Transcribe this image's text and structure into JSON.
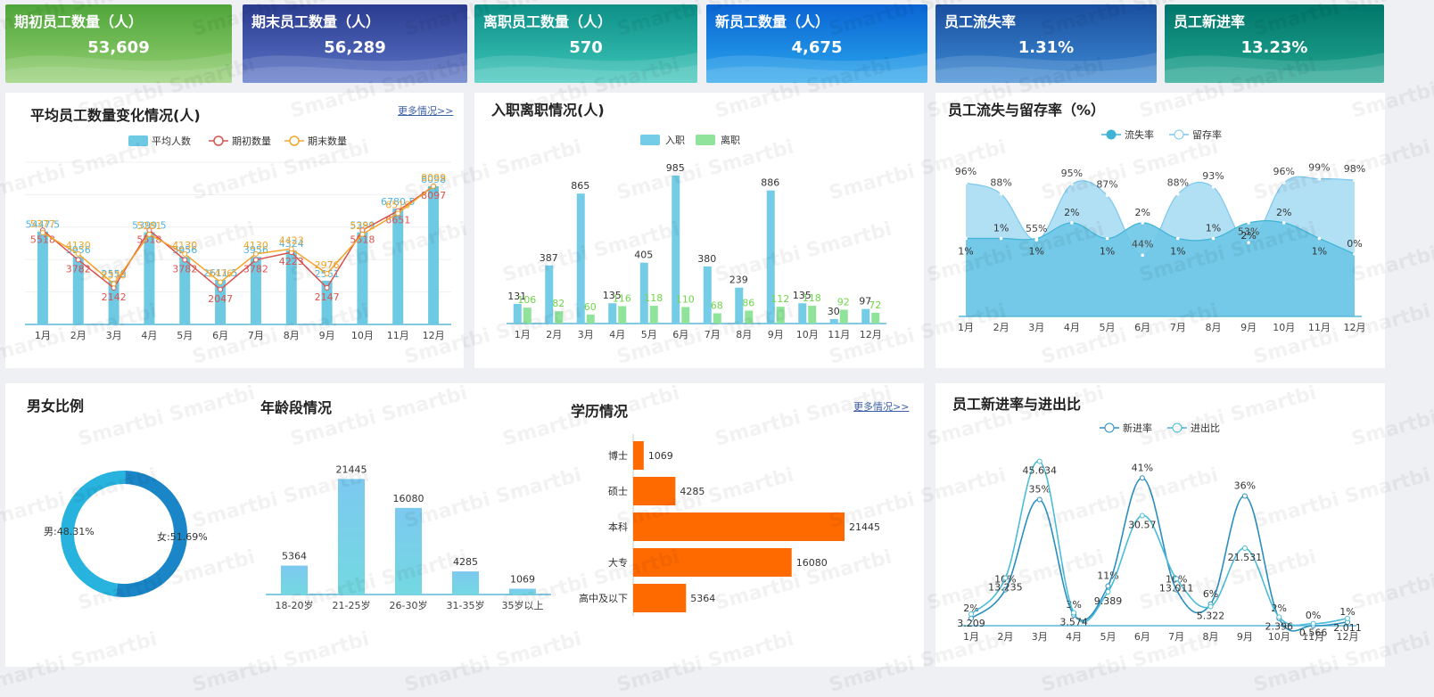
{
  "kpis": [
    {
      "title": "期初员工数量（人）",
      "value": "53,609",
      "c1": "#4fa63a",
      "c2": "#95cf73"
    },
    {
      "title": "期末员工数量（人）",
      "value": "56,289",
      "c1": "#2b3c8f",
      "c2": "#5a73c6"
    },
    {
      "title": "离职员工数量（人）",
      "value": "570",
      "c1": "#0d8f86",
      "c2": "#3fc6bb"
    },
    {
      "title": "新员工数量（人）",
      "value": "4,675",
      "c1": "#0a64d4",
      "c2": "#2aa7ec"
    },
    {
      "title": "员工流失率",
      "value": "1.31%",
      "c1": "#1a4fa0",
      "c2": "#3d8ad3"
    },
    {
      "title": "员工新进率",
      "value": "13.23%",
      "c1": "#00766a",
      "c2": "#23a691"
    }
  ],
  "more_label": "更多情况>>",
  "watermark": "Smartbi",
  "chart_data": [
    {
      "id": "avg",
      "type": "bar+line",
      "title": "平均员工数量变化情况(人)",
      "categories": [
        "1月",
        "2月",
        "3月",
        "4月",
        "5月",
        "6月",
        "7月",
        "8月",
        "9月",
        "10月",
        "11月",
        "12月"
      ],
      "series": [
        {
          "name": "平均人数",
          "kind": "bar",
          "color": "#6ec9e3",
          "values": [
            5447.5,
            3956,
            2559,
            5399.5,
            3956,
            2611.5,
            3956,
            4324,
            2561,
            5399,
            6780.5,
            8098
          ]
        },
        {
          "name": "期初数量",
          "kind": "line",
          "color": "#d9534f",
          "values": [
            5518,
            3782,
            2142,
            5518,
            3782,
            2047,
            3782,
            4223,
            2147,
            5518,
            6651,
            8097
          ]
        },
        {
          "name": "期末数量",
          "kind": "line",
          "color": "#f4a62a",
          "values": [
            5377,
            4130,
            2376,
            5281,
            4130,
            2476,
            4130,
            4423,
            2976,
            5281,
            6510,
            8099
          ]
        }
      ],
      "ylim": [
        0,
        9500
      ]
    },
    {
      "id": "inout",
      "type": "bar",
      "title": "入职离职情况(人)",
      "categories": [
        "1月",
        "2月",
        "3月",
        "4月",
        "5月",
        "6月",
        "7月",
        "8月",
        "9月",
        "10月",
        "11月",
        "12月"
      ],
      "series": [
        {
          "name": "入职",
          "color": "#74cce6",
          "values": [
            131,
            387,
            865,
            135,
            405,
            985,
            380,
            239,
            886,
            135,
            30,
            97
          ]
        },
        {
          "name": "离职",
          "color": "#8fe39a",
          "values": [
            106,
            82,
            60,
            116,
            118,
            110,
            68,
            86,
            112,
            118,
            92,
            72
          ]
        }
      ],
      "ylim": [
        0,
        1050
      ]
    },
    {
      "id": "retention",
      "type": "area",
      "title": "员工流失与留存率（%）",
      "categories": [
        "1月",
        "2月",
        "3月",
        "4月",
        "5月",
        "6月",
        "7月",
        "8月",
        "9月",
        "10月",
        "11月",
        "12月"
      ],
      "series": [
        {
          "name": "流失率",
          "color": "#3fb4d6",
          "values": [
            1,
            1,
            1,
            2,
            1,
            2,
            1,
            1,
            2,
            2,
            1,
            0
          ],
          "labels": [
            "1%",
            "1%",
            "1%",
            "2%",
            "1%",
            "2%",
            "1%",
            "1%",
            "2%",
            "2%",
            "1%",
            "0%"
          ]
        },
        {
          "name": "留存率",
          "color": "#7cc8ee",
          "values": [
            96,
            88,
            55,
            95,
            87,
            44,
            88,
            93,
            53,
            96,
            99,
            98
          ],
          "labels": [
            "96%",
            "88%",
            "55%",
            "95%",
            "87%",
            "44%",
            "88%",
            "93%",
            "53%",
            "96%",
            "99%",
            "98%"
          ]
        }
      ]
    },
    {
      "id": "gender",
      "type": "pie",
      "title": "男女比例",
      "slices": [
        {
          "name": "女",
          "value": 51.69,
          "label": "女:51.69%",
          "color": "#1a86c8"
        },
        {
          "name": "男",
          "value": 48.31,
          "label": "男:48.31%",
          "color": "#27b3de"
        }
      ]
    },
    {
      "id": "age",
      "type": "bar",
      "title": "年龄段情况",
      "categories": [
        "18-20岁",
        "21-25岁",
        "26-30岁",
        "31-35岁",
        "35岁以上"
      ],
      "values": [
        5364,
        21445,
        16080,
        4285,
        1069
      ],
      "ylim": [
        0,
        23000
      ]
    },
    {
      "id": "edu",
      "type": "bar",
      "orientation": "horizontal",
      "title": "学历情况",
      "categories": [
        "博士",
        "硕士",
        "本科",
        "大专",
        "高中及以下"
      ],
      "values": [
        1069,
        4285,
        21445,
        16080,
        5364
      ],
      "color": "#ff6a00",
      "xlim": [
        0,
        21445
      ]
    },
    {
      "id": "newrate",
      "type": "line",
      "title": "员工新进率与进出比",
      "categories": [
        "1月",
        "2月",
        "3月",
        "4月",
        "5月",
        "6月",
        "7月",
        "8月",
        "9月",
        "10月",
        "11月",
        "12月"
      ],
      "series": [
        {
          "name": "新进率",
          "color": "#2a8fbf",
          "values": [
            2,
            10,
            35,
            3,
            11,
            41,
            10,
            6,
            36,
            2,
            0,
            1
          ],
          "labels": [
            "2%",
            "10%",
            "35%",
            "3%",
            "11%",
            "41%",
            "10%",
            "6%",
            "36%",
            "2%",
            "0%",
            "1%"
          ]
        },
        {
          "name": "进出比",
          "color": "#4bbcd6",
          "values": [
            3.209,
            13.235,
            45.634,
            3.574,
            9.389,
            30.57,
            13.011,
            5.322,
            21.531,
            2.396,
            0.566,
            2.011
          ],
          "labels": [
            "3.209",
            "13.235",
            "45.634",
            "3.574",
            "9.389",
            "30.57",
            "13.011",
            "5.322",
            "21.531",
            "2.396",
            "0.566",
            "2.011"
          ]
        }
      ],
      "ylim": [
        0,
        48
      ]
    }
  ]
}
